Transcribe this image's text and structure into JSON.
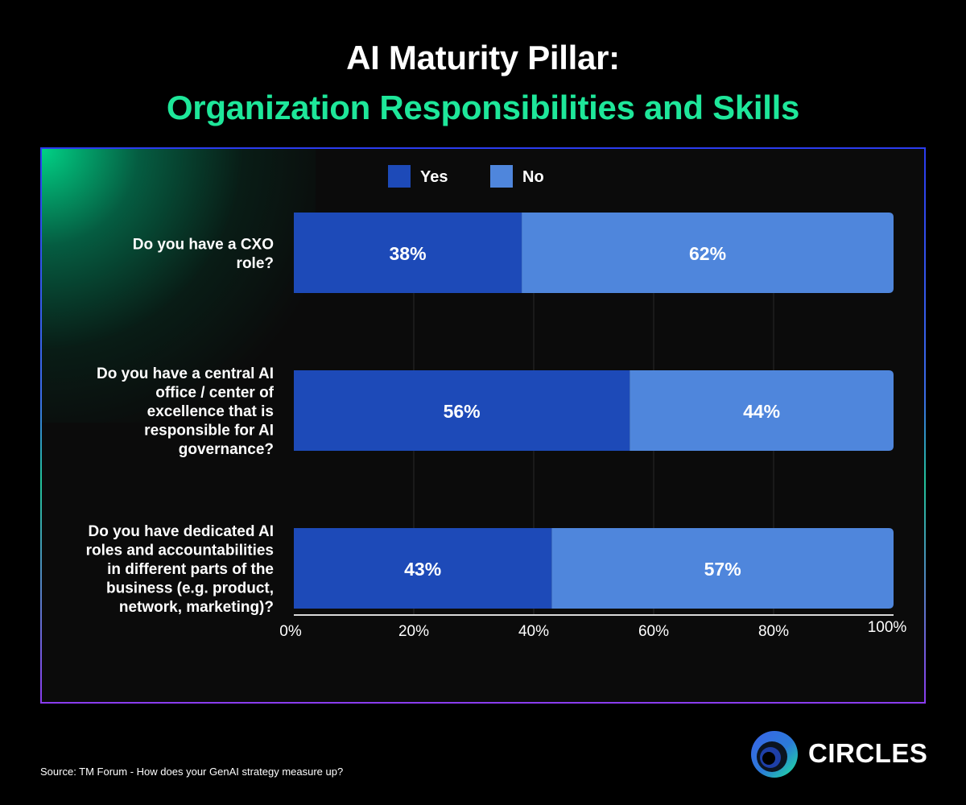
{
  "title": "AI Maturity Pillar:",
  "subtitle": "Organization Responsibilities and Skills",
  "source": "Source: TM Forum - How does your GenAI strategy measure up?",
  "logo": {
    "text": "CIRCLES",
    "icon": "circles-logo-icon"
  },
  "colors": {
    "yes": "#1d4ab8",
    "no": "#4f86dc",
    "accent": "#1ee79a"
  },
  "chart_data": {
    "type": "bar",
    "orientation": "horizontal",
    "stacked": true,
    "categories": [
      [
        "Do you have a CXO",
        "role?"
      ],
      [
        "Do you have a central AI",
        "office / center of",
        "excellence that is",
        "responsible for AI",
        "governance?"
      ],
      [
        "Do you have dedicated AI",
        "roles and accountabilities",
        "in different parts of the",
        "business (e.g. product,",
        "network, marketing)?"
      ]
    ],
    "series": [
      {
        "name": "Yes",
        "values": [
          38,
          56,
          43
        ],
        "labels": [
          "38%",
          "56%",
          "43%"
        ]
      },
      {
        "name": "No",
        "values": [
          62,
          44,
          57
        ],
        "labels": [
          "62%",
          "44%",
          "57%"
        ]
      }
    ],
    "xticks": [
      "0%",
      "20%",
      "40%",
      "60%",
      "80%",
      "100%"
    ],
    "xlim": [
      0,
      100
    ],
    "grid": "vertical",
    "legend": "top-center"
  }
}
